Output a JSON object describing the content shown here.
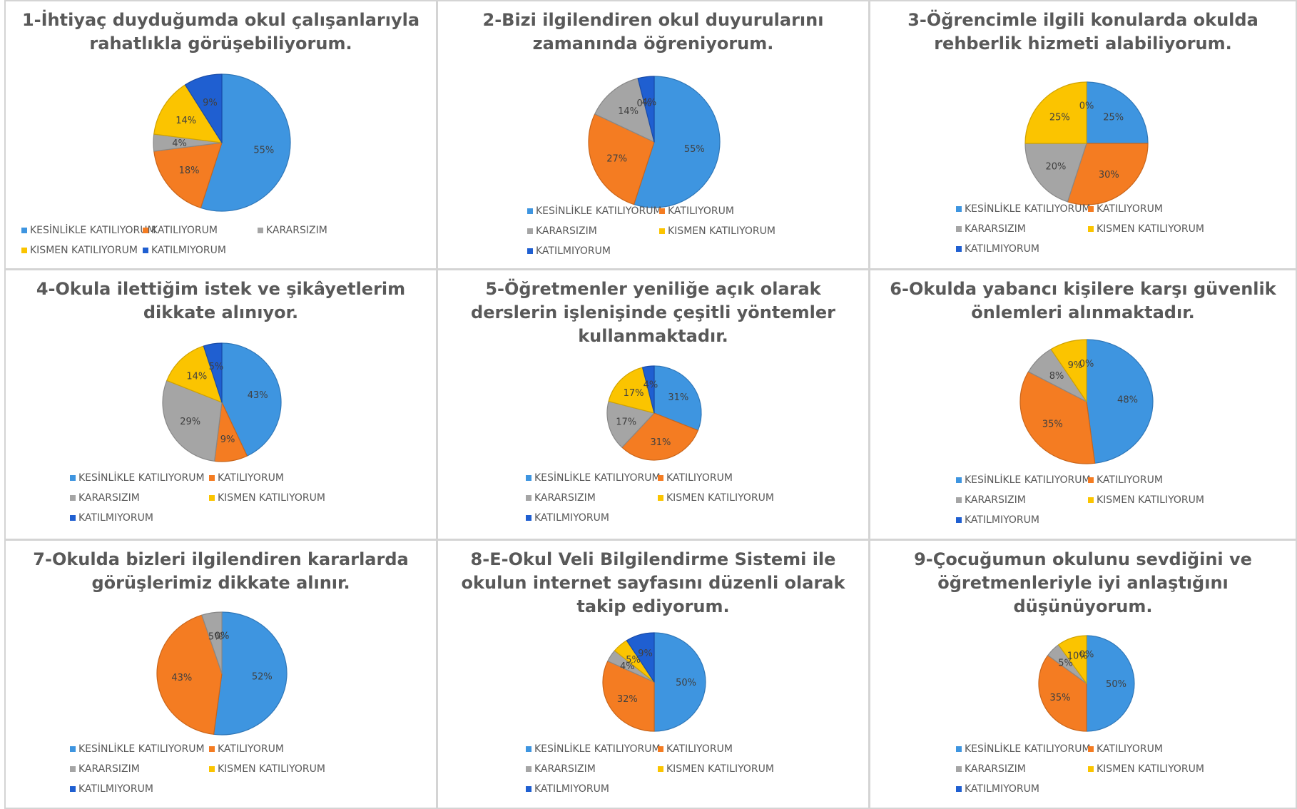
{
  "legend_labels": [
    "KESİNLİKLE KATILIYORUM",
    "KATILIYORUM",
    "KARARSIZIM",
    "KISMEN KATILIYORUM",
    "KATILMIYORUM"
  ],
  "colors": {
    "kesinlikle_katiliyorum": "#3e95e0",
    "katiliyorum": "#f47c22",
    "kararsizim": "#a5a5a5",
    "kismen_katiliyorum": "#fbc400",
    "katilmiyorum": "#1f5fd1",
    "border": "#d4d4d4",
    "title_text": "#595959"
  },
  "chart_data": [
    {
      "type": "pie",
      "title": "1-İhtiyaç duyduğumda okul çalışanlarıyla rahatlıkla görüşebiliyorum.",
      "categories": [
        "KESİNLİKLE KATILIYORUM",
        "KATILIYORUM",
        "KARARSIZIM",
        "KISMEN KATILIYORUM",
        "KATILMIYORUM"
      ],
      "values": [
        55,
        18,
        4,
        14,
        9
      ],
      "data_labels": [
        "55%",
        "18%",
        "4%",
        "14%",
        "9%"
      ],
      "legend_position": "bottom"
    },
    {
      "type": "pie",
      "title": "2-Bizi ilgilendiren okul duyurularını zamanında öğreniyorum.",
      "categories": [
        "KESİNLİKLE KATILIYORUM",
        "KATILIYORUM",
        "KARARSIZIM",
        "KISMEN KATILIYORUM",
        "KATILMIYORUM"
      ],
      "values": [
        55,
        27,
        14,
        0,
        4
      ],
      "data_labels": [
        "55%",
        "27%",
        "14%",
        "0%",
        "4%"
      ],
      "legend_position": "bottom"
    },
    {
      "type": "pie",
      "title": "3-Öğrencimle ilgili konularda okulda rehberlik hizmeti alabiliyorum.",
      "categories": [
        "KESİNLİKLE KATILIYORUM",
        "KATILIYORUM",
        "KARARSIZIM",
        "KISMEN KATILIYORUM",
        "KATILMIYORUM"
      ],
      "values": [
        25,
        30,
        20,
        25,
        0
      ],
      "data_labels": [
        "25%",
        "30%",
        "20%",
        "25%",
        "0%"
      ],
      "legend_position": "bottom"
    },
    {
      "type": "pie",
      "title": "4-Okula ilettiğim istek ve şikâyetlerim dikkate alınıyor.",
      "categories": [
        "KESİNLİKLE KATILIYORUM",
        "KATILIYORUM",
        "KARARSIZIM",
        "KISMEN KATILIYORUM",
        "KATILMIYORUM"
      ],
      "values": [
        43,
        9,
        29,
        14,
        5
      ],
      "data_labels": [
        "43%",
        "9%",
        "29%",
        "14%",
        "5%"
      ],
      "legend_position": "bottom"
    },
    {
      "type": "pie",
      "title": "5-Öğretmenler yeniliğe açık olarak derslerin işlenişinde çeşitli yöntemler kullanmaktadır.",
      "categories": [
        "KESİNLİKLE KATILIYORUM",
        "KATILIYORUM",
        "KARARSIZIM",
        "KISMEN KATILIYORUM",
        "KATILMIYORUM"
      ],
      "values": [
        31,
        31,
        17,
        17,
        4
      ],
      "data_labels": [
        "31%",
        "31%",
        "17%",
        "17%",
        "4%"
      ],
      "legend_position": "bottom"
    },
    {
      "type": "pie",
      "title": "6-Okulda yabancı kişilere karşı güvenlik önlemleri alınmaktadır.",
      "categories": [
        "KESİNLİKLE KATILIYORUM",
        "KATILIYORUM",
        "KARARSIZIM",
        "KISMEN KATILIYORUM",
        "KATILMIYORUM"
      ],
      "values": [
        48,
        35,
        8,
        9,
        0
      ],
      "data_labels": [
        "48%",
        "35%",
        "8%",
        "9%",
        "0%"
      ],
      "legend_position": "bottom"
    },
    {
      "type": "pie",
      "title": "7-Okulda bizleri ilgilendiren kararlarda görüşlerimiz dikkate alınır.",
      "categories": [
        "KESİNLİKLE KATILIYORUM",
        "KATILIYORUM",
        "KARARSIZIM",
        "KISMEN KATILIYORUM",
        "KATILMIYORUM"
      ],
      "values": [
        52,
        43,
        5,
        0,
        0
      ],
      "data_labels": [
        "52%",
        "43%",
        "5%",
        "0%",
        "0%"
      ],
      "legend_position": "bottom"
    },
    {
      "type": "pie",
      "title": "8-E-Okul Veli Bilgilendirme Sistemi ile okulun internet sayfasını düzenli olarak takip ediyorum.",
      "categories": [
        "KESİNLİKLE KATILIYORUM",
        "KATILIYORUM",
        "KARARSIZIM",
        "KISMEN KATILIYORUM",
        "KATILMIYORUM"
      ],
      "values": [
        50,
        32,
        4,
        5,
        9
      ],
      "data_labels": [
        "50%",
        "32%",
        "4%",
        "5%",
        "9%"
      ],
      "legend_position": "bottom"
    },
    {
      "type": "pie",
      "title": "9-Çocuğumun okulunu sevdiğini ve öğretmenleriyle iyi anlaştığını düşünüyorum.",
      "categories": [
        "KESİNLİKLE KATILIYORUM",
        "KATILIYORUM",
        "KARARSIZIM",
        "KISMEN KATILIYORUM",
        "KATILMIYORUM"
      ],
      "values": [
        50,
        35,
        5,
        10,
        0
      ],
      "data_labels": [
        "50%",
        "35%",
        "5%",
        "10%",
        "0%"
      ],
      "legend_position": "bottom"
    }
  ]
}
